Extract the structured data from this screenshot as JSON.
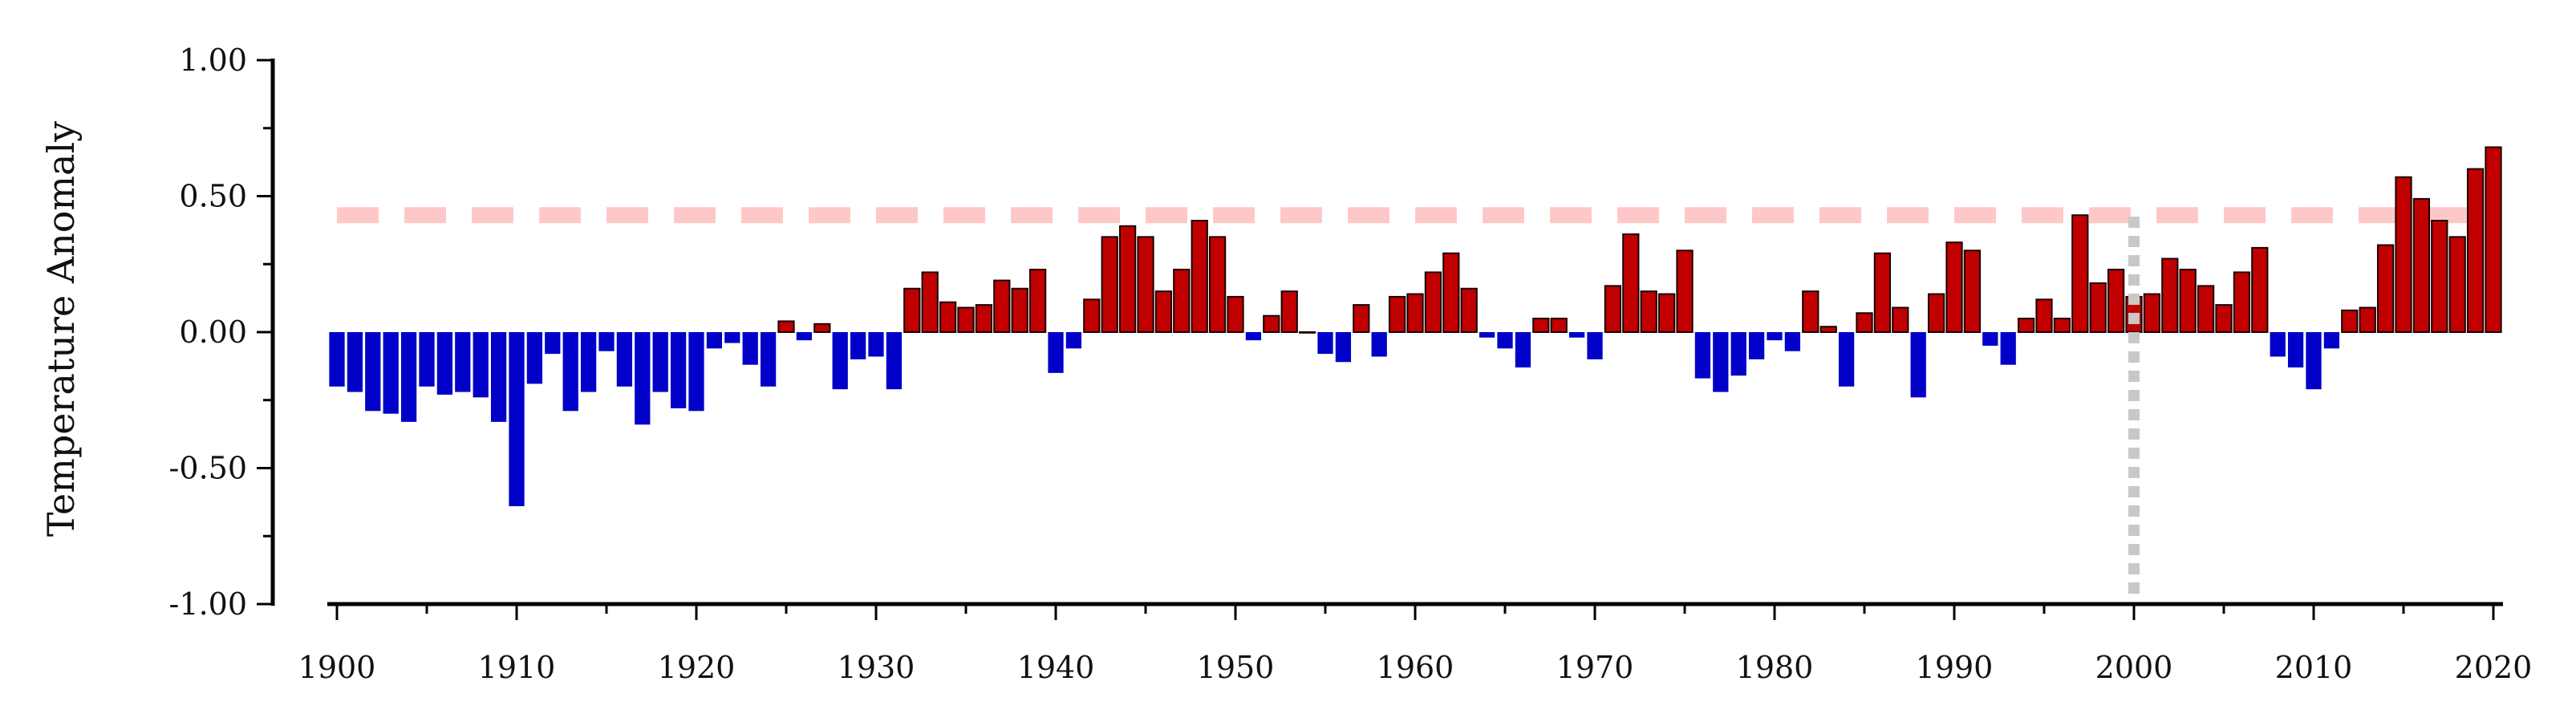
{
  "chart_data": {
    "type": "bar",
    "title": "",
    "xlabel": "",
    "ylabel": "Temperature Anomaly",
    "xlim": [
      1900,
      2020
    ],
    "ylim": [
      -1.0,
      1.0
    ],
    "x_ticks": [
      "1900",
      "1910",
      "1920",
      "1930",
      "1940",
      "1950",
      "1960",
      "1970",
      "1980",
      "1990",
      "2000",
      "2010",
      "2020"
    ],
    "y_ticks": [
      "1.00",
      "0.50",
      "0.00",
      "-0.50",
      "-1.00"
    ],
    "grid": false,
    "legend": "none",
    "colors": {
      "positive": "#c00000",
      "negative": "#0000c8",
      "edge": "#1a0000",
      "reference_line": "#ffc8c8",
      "marker_line": "#c8c8c8"
    },
    "reference_line": {
      "y": 0.43,
      "style": "dashed"
    },
    "marker_line": {
      "x": 2000,
      "style": "dotted"
    },
    "years": [
      1900,
      1901,
      1902,
      1903,
      1904,
      1905,
      1906,
      1907,
      1908,
      1909,
      1910,
      1911,
      1912,
      1913,
      1914,
      1915,
      1916,
      1917,
      1918,
      1919,
      1920,
      1921,
      1922,
      1923,
      1924,
      1925,
      1926,
      1927,
      1928,
      1929,
      1930,
      1931,
      1932,
      1933,
      1934,
      1935,
      1936,
      1937,
      1938,
      1939,
      1940,
      1941,
      1942,
      1943,
      1944,
      1945,
      1946,
      1947,
      1948,
      1949,
      1950,
      1951,
      1952,
      1953,
      1954,
      1955,
      1956,
      1957,
      1958,
      1959,
      1960,
      1961,
      1962,
      1963,
      1964,
      1965,
      1966,
      1967,
      1968,
      1969,
      1970,
      1971,
      1972,
      1973,
      1974,
      1975,
      1976,
      1977,
      1978,
      1979,
      1980,
      1981,
      1982,
      1983,
      1984,
      1985,
      1986,
      1987,
      1988,
      1989,
      1990,
      1991,
      1992,
      1993,
      1994,
      1995,
      1996,
      1997,
      1998,
      1999,
      2000,
      2001,
      2002,
      2003,
      2004,
      2005,
      2006,
      2007,
      2008,
      2009,
      2010,
      2011,
      2012,
      2013,
      2014,
      2015,
      2016,
      2017,
      2018,
      2019,
      2020
    ],
    "values": [
      -0.2,
      -0.22,
      -0.29,
      -0.3,
      -0.33,
      -0.2,
      -0.23,
      -0.22,
      -0.24,
      -0.33,
      -0.64,
      -0.19,
      -0.08,
      -0.29,
      -0.22,
      -0.07,
      -0.2,
      -0.34,
      -0.22,
      -0.28,
      -0.29,
      -0.06,
      -0.04,
      -0.12,
      -0.2,
      0.04,
      -0.03,
      0.03,
      -0.21,
      -0.1,
      -0.09,
      -0.21,
      0.16,
      0.22,
      0.11,
      0.09,
      0.1,
      0.19,
      0.16,
      0.23,
      -0.15,
      -0.06,
      0.12,
      0.35,
      0.39,
      0.35,
      0.15,
      0.23,
      0.41,
      0.35,
      0.13,
      -0.03,
      0.06,
      0.15,
      0.0,
      -0.08,
      -0.11,
      0.1,
      -0.09,
      0.13,
      0.14,
      0.22,
      0.29,
      0.16,
      -0.02,
      -0.06,
      -0.13,
      0.05,
      0.05,
      -0.02,
      -0.1,
      0.17,
      0.36,
      0.15,
      0.14,
      0.3,
      -0.17,
      -0.22,
      -0.16,
      -0.1,
      -0.03,
      -0.07,
      0.15,
      0.02,
      -0.2,
      0.07,
      0.29,
      0.09,
      -0.24,
      0.14,
      0.33,
      0.3,
      -0.05,
      -0.12,
      0.05,
      0.12,
      0.05,
      0.43,
      0.18,
      0.23,
      0.13,
      0.14,
      0.27,
      0.23,
      0.17,
      0.1,
      0.22,
      0.31,
      -0.09,
      -0.13,
      -0.21,
      -0.06,
      0.08,
      0.09,
      0.32,
      0.57,
      0.49,
      0.41,
      0.35,
      0.6,
      0.68
    ]
  }
}
